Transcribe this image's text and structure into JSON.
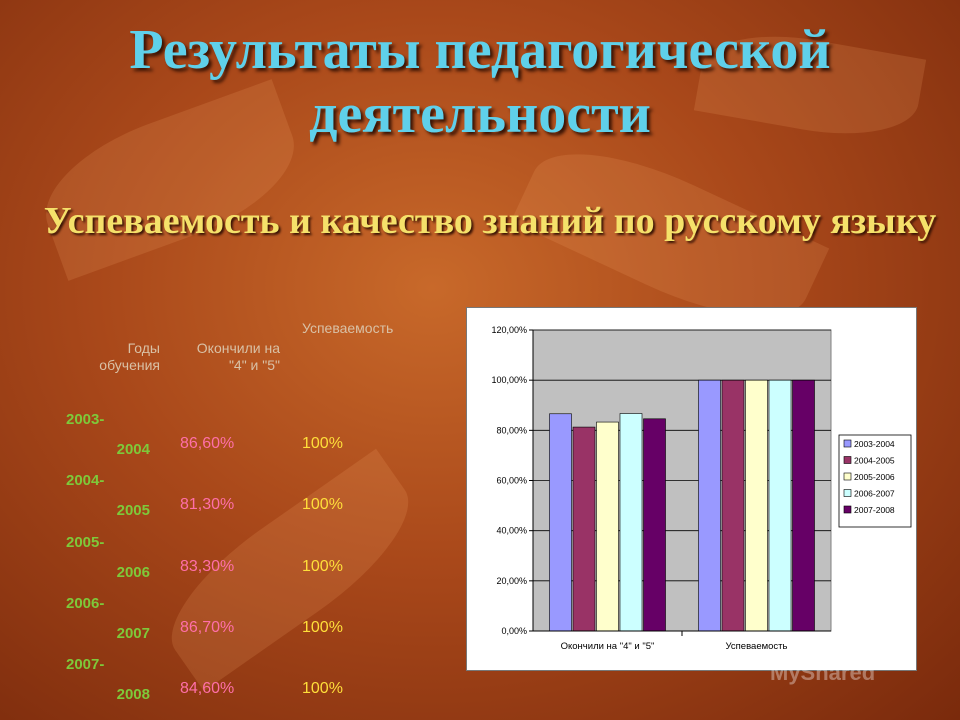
{
  "title": "Результаты педагогической деятельности",
  "subtitle": "Успеваемость и качество знаний по русскому языку",
  "table": {
    "headers": [
      "Годы обучения",
      "Окончили на \"4\" и \"5\"",
      "Успеваемость"
    ],
    "rows": [
      {
        "year_a": "2003-",
        "year_b": "2004",
        "quality": "86,60%",
        "success": "100%"
      },
      {
        "year_a": "2004-",
        "year_b": "2005",
        "quality": "81,30%",
        "success": "100%"
      },
      {
        "year_a": "2005-",
        "year_b": "2006",
        "quality": "83,30%",
        "success": "100%"
      },
      {
        "year_a": "2006-",
        "year_b": "2007",
        "quality": "86,70%",
        "success": "100%"
      },
      {
        "year_a": "2007-",
        "year_b": "2008",
        "quality": "84,60%",
        "success": "100%"
      }
    ]
  },
  "chart_data": {
    "type": "bar",
    "categories": [
      "Окончили на \"4\" и \"5\"",
      "Успеваемость"
    ],
    "series": [
      {
        "name": "2003-2004",
        "color": "#9999ff",
        "values": [
          86.6,
          100
        ]
      },
      {
        "name": "2004-2005",
        "color": "#993366",
        "values": [
          81.3,
          100
        ]
      },
      {
        "name": "2005-2006",
        "color": "#ffffcc",
        "values": [
          83.3,
          100
        ]
      },
      {
        "name": "2006-2007",
        "color": "#ccffff",
        "values": [
          86.7,
          100
        ]
      },
      {
        "name": "2007-2008",
        "color": "#660066",
        "values": [
          84.6,
          100
        ]
      }
    ],
    "ylim": [
      0,
      120
    ],
    "yticks": [
      "0,00%",
      "20,00%",
      "40,00%",
      "60,00%",
      "80,00%",
      "100,00%",
      "120,00%"
    ],
    "grid": true,
    "legend": "right",
    "plot_background": "#c0c0c0"
  },
  "watermark": "MyShared"
}
